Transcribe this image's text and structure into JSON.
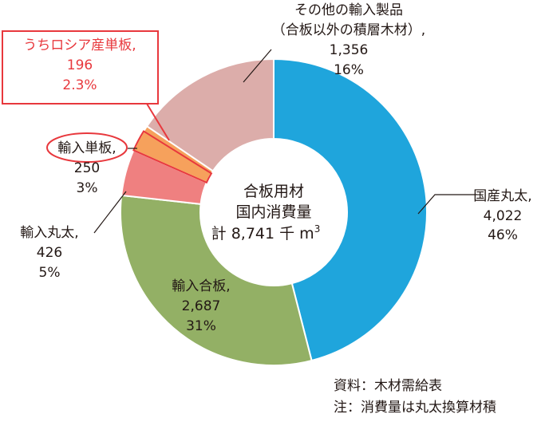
{
  "chart_data": {
    "type": "pie",
    "donut": true,
    "center": {
      "line1": "合板用材",
      "line2": "国内消費量",
      "line3_prefix": "計 8,741 千 m",
      "line3_sup": "3"
    },
    "slices": [
      {
        "label": "国産丸太,",
        "value": 4022,
        "value_text": "4,022",
        "percent": "46%",
        "color": "#1fa5dc"
      },
      {
        "label": "輸入合板,",
        "value": 2687,
        "value_text": "2,687",
        "percent": "31%",
        "color": "#93b065"
      },
      {
        "label": "輸入丸太,",
        "value": 426,
        "value_text": "426",
        "percent": "5%",
        "color": "#ef8080"
      },
      {
        "label": "輸入単板,",
        "value": 250,
        "value_text": "250",
        "percent": "3%",
        "color": "#f6a15c"
      },
      {
        "label_line1": "その他の輸入製品",
        "label_line2": "（合板以外の積層木材）,",
        "value": 1356,
        "value_text": "1,356",
        "percent": "16%",
        "color": "#dcadaa"
      }
    ],
    "sub_slice": {
      "label": "うちロシア産単板,",
      "value": 196,
      "value_text": "196",
      "percent": "2.3%",
      "color": "#e8383d"
    }
  },
  "source": "資料：木材需給表",
  "note": "注：消費量は丸太換算材積"
}
